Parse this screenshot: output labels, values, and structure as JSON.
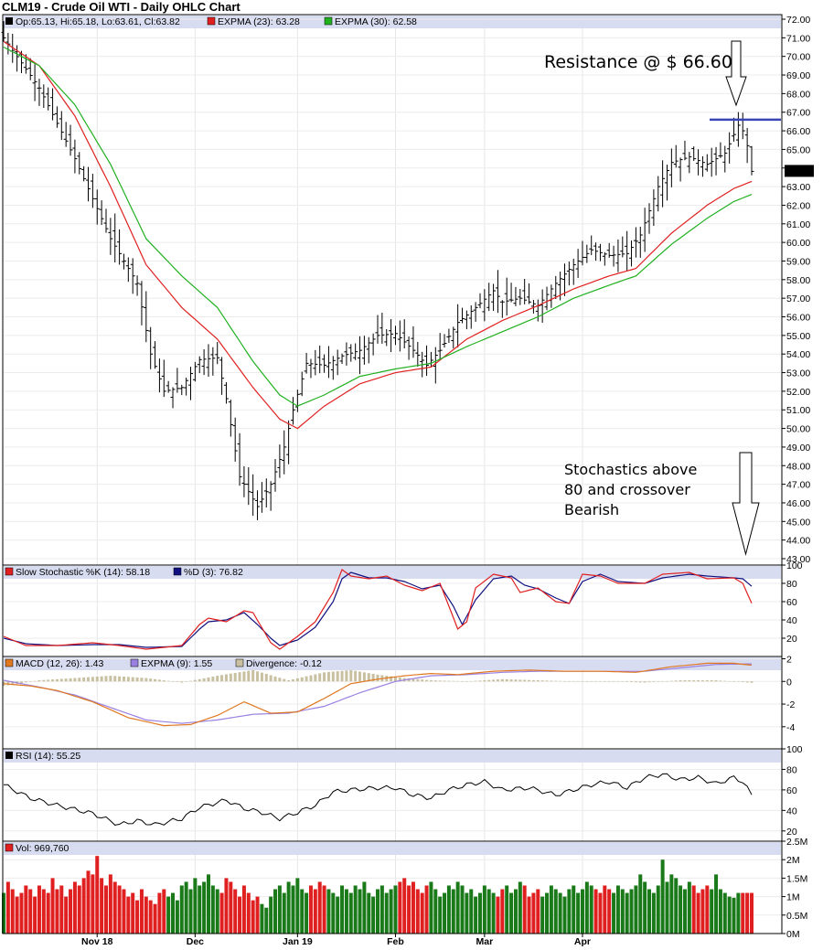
{
  "chart_data": {
    "type": "ohlc",
    "title": "CLM19 - Crude Oil WTI - Daily OHLC Chart",
    "x_tick_labels": [
      "Nov 18",
      "Dec",
      "Jan 19",
      "Feb",
      "Mar",
      "Apr"
    ],
    "price_panel": {
      "legend": {
        "ohlc": "Op:65.13, Hi:65.18, Lo:63.61, Cl:63.82",
        "ema23": "EXPMA (23): 63.28",
        "ema30": "EXPMA (30): 62.58"
      },
      "ylim": [
        43.0,
        72.0
      ],
      "y_ticks": [
        "72.00",
        "71.00",
        "70.00",
        "69.00",
        "68.00",
        "67.00",
        "66.00",
        "65.00",
        "64.00",
        "63.00",
        "62.00",
        "61.00",
        "60.00",
        "59.00",
        "58.00",
        "57.00",
        "56.00",
        "55.00",
        "54.00",
        "53.00",
        "52.00",
        "51.00",
        "50.00",
        "49.00",
        "48.00",
        "47.00",
        "46.00",
        "45.00",
        "44.00",
        "43.00"
      ],
      "last_close_label": "63.82",
      "close_waypoints": [
        [
          0,
          71.0
        ],
        [
          8,
          68.3
        ],
        [
          16,
          64.5
        ],
        [
          24,
          60.2
        ],
        [
          30,
          57.8
        ],
        [
          33,
          54.0
        ],
        [
          36,
          52.0
        ],
        [
          40,
          52.2
        ],
        [
          44,
          53.7
        ],
        [
          48,
          53.8
        ],
        [
          50,
          51.6
        ],
        [
          53,
          47.4
        ],
        [
          57,
          45.8
        ],
        [
          60,
          47.0
        ],
        [
          63,
          49.0
        ],
        [
          65,
          51.0
        ],
        [
          68,
          53.5
        ],
        [
          72,
          53.4
        ],
        [
          76,
          53.9
        ],
        [
          80,
          54.2
        ],
        [
          84,
          55.0
        ],
        [
          88,
          55.1
        ],
        [
          92,
          54.2
        ],
        [
          95,
          53.4
        ],
        [
          98,
          54.2
        ],
        [
          102,
          55.7
        ],
        [
          106,
          56.5
        ],
        [
          110,
          57.4
        ],
        [
          112,
          56.8
        ],
        [
          116,
          57.0
        ],
        [
          120,
          56.6
        ],
        [
          124,
          57.8
        ],
        [
          128,
          58.8
        ],
        [
          132,
          59.6
        ],
        [
          136,
          59.3
        ],
        [
          140,
          59.4
        ],
        [
          143,
          60.4
        ],
        [
          147,
          63.0
        ],
        [
          150,
          64.3
        ],
        [
          154,
          64.6
        ],
        [
          158,
          64.2
        ],
        [
          162,
          64.8
        ],
        [
          165,
          66.3
        ],
        [
          166,
          66.0
        ],
        [
          167,
          65.2
        ],
        [
          168,
          63.82
        ]
      ],
      "ema23_waypoints": [
        [
          0,
          70.8
        ],
        [
          8,
          69.5
        ],
        [
          16,
          66.8
        ],
        [
          24,
          63.0
        ],
        [
          32,
          58.8
        ],
        [
          40,
          56.5
        ],
        [
          48,
          54.8
        ],
        [
          56,
          52.2
        ],
        [
          62,
          50.5
        ],
        [
          66,
          50.0
        ],
        [
          72,
          51.2
        ],
        [
          80,
          52.4
        ],
        [
          88,
          53.0
        ],
        [
          96,
          53.3
        ],
        [
          104,
          54.8
        ],
        [
          112,
          55.8
        ],
        [
          120,
          56.6
        ],
        [
          128,
          57.5
        ],
        [
          136,
          58.2
        ],
        [
          142,
          58.6
        ],
        [
          150,
          60.5
        ],
        [
          158,
          62.0
        ],
        [
          164,
          62.9
        ],
        [
          168,
          63.28
        ]
      ],
      "ema30_waypoints": [
        [
          0,
          70.5
        ],
        [
          8,
          69.5
        ],
        [
          16,
          67.4
        ],
        [
          24,
          64.2
        ],
        [
          32,
          60.2
        ],
        [
          40,
          58.2
        ],
        [
          48,
          56.5
        ],
        [
          56,
          53.6
        ],
        [
          62,
          51.8
        ],
        [
          66,
          51.2
        ],
        [
          72,
          51.8
        ],
        [
          80,
          52.8
        ],
        [
          88,
          53.2
        ],
        [
          96,
          53.5
        ],
        [
          104,
          54.4
        ],
        [
          112,
          55.2
        ],
        [
          120,
          56.0
        ],
        [
          128,
          57.0
        ],
        [
          136,
          57.7
        ],
        [
          142,
          58.2
        ],
        [
          150,
          59.9
        ],
        [
          158,
          61.3
        ],
        [
          164,
          62.2
        ],
        [
          168,
          62.58
        ]
      ],
      "resistance": {
        "value": 66.6,
        "label": "Resistance @ $ 66.60"
      }
    },
    "stochastic_panel": {
      "legend": {
        "k": "Slow Stochastic %K (14): 58.18",
        "d": "%D (3): 76.82"
      },
      "ylim": [
        0,
        100
      ],
      "y_ticks": [
        "100",
        "80",
        "60",
        "40",
        "20"
      ],
      "k_waypoints": [
        [
          0,
          22
        ],
        [
          5,
          12
        ],
        [
          12,
          12
        ],
        [
          20,
          15
        ],
        [
          26,
          12
        ],
        [
          32,
          8
        ],
        [
          40,
          12
        ],
        [
          44,
          35
        ],
        [
          46,
          42
        ],
        [
          50,
          38
        ],
        [
          54,
          50
        ],
        [
          56,
          48
        ],
        [
          60,
          15
        ],
        [
          62,
          8
        ],
        [
          66,
          22
        ],
        [
          70,
          38
        ],
        [
          74,
          70
        ],
        [
          76,
          95
        ],
        [
          78,
          88
        ],
        [
          82,
          85
        ],
        [
          86,
          88
        ],
        [
          90,
          78
        ],
        [
          94,
          72
        ],
        [
          98,
          80
        ],
        [
          102,
          30
        ],
        [
          104,
          38
        ],
        [
          106,
          75
        ],
        [
          110,
          90
        ],
        [
          114,
          86
        ],
        [
          116,
          70
        ],
        [
          120,
          75
        ],
        [
          124,
          60
        ],
        [
          127,
          58
        ],
        [
          130,
          90
        ],
        [
          134,
          88
        ],
        [
          138,
          80
        ],
        [
          144,
          80
        ],
        [
          148,
          90
        ],
        [
          154,
          92
        ],
        [
          158,
          85
        ],
        [
          164,
          86
        ],
        [
          166,
          80
        ],
        [
          168,
          58.18
        ]
      ],
      "d_waypoints": [
        [
          0,
          20
        ],
        [
          5,
          14
        ],
        [
          12,
          12
        ],
        [
          20,
          13
        ],
        [
          26,
          13
        ],
        [
          32,
          10
        ],
        [
          40,
          11
        ],
        [
          44,
          30
        ],
        [
          46,
          38
        ],
        [
          50,
          40
        ],
        [
          54,
          48
        ],
        [
          57,
          35
        ],
        [
          60,
          20
        ],
        [
          62,
          12
        ],
        [
          66,
          18
        ],
        [
          70,
          32
        ],
        [
          74,
          60
        ],
        [
          76,
          85
        ],
        [
          78,
          92
        ],
        [
          82,
          86
        ],
        [
          86,
          86
        ],
        [
          90,
          82
        ],
        [
          94,
          74
        ],
        [
          98,
          78
        ],
        [
          101,
          55
        ],
        [
          103,
          35
        ],
        [
          106,
          62
        ],
        [
          110,
          85
        ],
        [
          114,
          88
        ],
        [
          117,
          78
        ],
        [
          120,
          74
        ],
        [
          124,
          64
        ],
        [
          127,
          58
        ],
        [
          130,
          82
        ],
        [
          134,
          90
        ],
        [
          138,
          82
        ],
        [
          144,
          80
        ],
        [
          148,
          86
        ],
        [
          154,
          90
        ],
        [
          158,
          88
        ],
        [
          164,
          86
        ],
        [
          166,
          85
        ],
        [
          168,
          76.82
        ]
      ]
    },
    "macd_panel": {
      "legend": {
        "macd": "MACD (12, 26): 1.43",
        "signal": "EXPMA (9): 1.55",
        "divergence": "Divergence: -0.12"
      },
      "ylim": [
        -5,
        2
      ],
      "y_ticks": [
        "2",
        "0",
        "-2",
        "-4"
      ],
      "macd_waypoints": [
        [
          0,
          -0.2
        ],
        [
          6,
          -0.4
        ],
        [
          12,
          -0.8
        ],
        [
          20,
          -1.8
        ],
        [
          28,
          -3.2
        ],
        [
          36,
          -3.9
        ],
        [
          42,
          -3.8
        ],
        [
          48,
          -3.0
        ],
        [
          54,
          -1.8
        ],
        [
          60,
          -2.8
        ],
        [
          66,
          -2.7
        ],
        [
          72,
          -1.5
        ],
        [
          78,
          -0.2
        ],
        [
          84,
          0.2
        ],
        [
          90,
          0.5
        ],
        [
          96,
          0.7
        ],
        [
          102,
          0.6
        ],
        [
          110,
          0.9
        ],
        [
          118,
          1.0
        ],
        [
          126,
          0.9
        ],
        [
          134,
          0.9
        ],
        [
          142,
          0.8
        ],
        [
          150,
          1.3
        ],
        [
          158,
          1.6
        ],
        [
          164,
          1.6
        ],
        [
          168,
          1.43
        ]
      ],
      "signal_waypoints": [
        [
          0,
          0.1
        ],
        [
          8,
          -0.5
        ],
        [
          16,
          -1.2
        ],
        [
          24,
          -2.3
        ],
        [
          32,
          -3.4
        ],
        [
          40,
          -3.7
        ],
        [
          48,
          -3.4
        ],
        [
          56,
          -2.9
        ],
        [
          64,
          -2.8
        ],
        [
          72,
          -2.2
        ],
        [
          80,
          -1.0
        ],
        [
          88,
          0.0
        ],
        [
          96,
          0.5
        ],
        [
          104,
          0.6
        ],
        [
          112,
          0.8
        ],
        [
          120,
          0.9
        ],
        [
          128,
          0.9
        ],
        [
          136,
          0.9
        ],
        [
          144,
          0.9
        ],
        [
          152,
          1.2
        ],
        [
          160,
          1.5
        ],
        [
          168,
          1.55
        ]
      ],
      "divergence_waypoints": [
        [
          0,
          -0.4
        ],
        [
          8,
          0.1
        ],
        [
          16,
          0.3
        ],
        [
          24,
          0.5
        ],
        [
          32,
          0.3
        ],
        [
          40,
          -0.1
        ],
        [
          48,
          0.5
        ],
        [
          56,
          1.0
        ],
        [
          64,
          0.1
        ],
        [
          72,
          0.8
        ],
        [
          78,
          1.0
        ],
        [
          84,
          0.6
        ],
        [
          90,
          0.3
        ],
        [
          96,
          0.1
        ],
        [
          104,
          0.0
        ],
        [
          112,
          0.2
        ],
        [
          120,
          0.1
        ],
        [
          128,
          0.0
        ],
        [
          136,
          0.0
        ],
        [
          144,
          -0.1
        ],
        [
          152,
          0.1
        ],
        [
          160,
          0.1
        ],
        [
          168,
          -0.12
        ]
      ]
    },
    "rsi_panel": {
      "legend": "RSI (14): 55.25",
      "ylim": [
        10,
        100
      ],
      "y_ticks": [
        "100",
        "80",
        "60",
        "40",
        "20"
      ],
      "waypoints": [
        [
          0,
          65
        ],
        [
          6,
          52
        ],
        [
          12,
          45
        ],
        [
          20,
          37
        ],
        [
          26,
          26
        ],
        [
          30,
          30
        ],
        [
          34,
          26
        ],
        [
          40,
          32
        ],
        [
          44,
          43
        ],
        [
          50,
          50
        ],
        [
          54,
          42
        ],
        [
          58,
          38
        ],
        [
          62,
          32
        ],
        [
          66,
          38
        ],
        [
          70,
          45
        ],
        [
          74,
          58
        ],
        [
          78,
          60
        ],
        [
          84,
          62
        ],
        [
          88,
          62
        ],
        [
          92,
          55
        ],
        [
          96,
          52
        ],
        [
          100,
          60
        ],
        [
          104,
          65
        ],
        [
          108,
          68
        ],
        [
          112,
          60
        ],
        [
          118,
          62
        ],
        [
          124,
          55
        ],
        [
          128,
          60
        ],
        [
          132,
          65
        ],
        [
          136,
          68
        ],
        [
          140,
          62
        ],
        [
          144,
          72
        ],
        [
          148,
          75
        ],
        [
          152,
          70
        ],
        [
          156,
          72
        ],
        [
          160,
          66
        ],
        [
          164,
          72
        ],
        [
          166,
          68
        ],
        [
          168,
          55.25
        ]
      ]
    },
    "volume_panel": {
      "legend": "Vol: 969,760",
      "ylim": [
        0,
        2500000
      ],
      "y_ticks": [
        "2.5M",
        "2M",
        "1.5M",
        "1M",
        "0.5M",
        "0M"
      ],
      "base_volumes": [
        1.1,
        1.4,
        1.2,
        1.0,
        1.1,
        1.3,
        1.2,
        1.0,
        1.3,
        1.2,
        1.1,
        1.5,
        1.2,
        1.3,
        1.0,
        1.2,
        1.4,
        1.3,
        1.5,
        1.7,
        1.6,
        2.1,
        1.5,
        1.3,
        1.6,
        1.4,
        1.3,
        1.2,
        1.0,
        1.1,
        0.9,
        1.2,
        1.0,
        0.9,
        0.8,
        1.1,
        1.2,
        1.0,
        1.1,
        0.9,
        1.3,
        1.4,
        1.2,
        1.5,
        1.3,
        1.4,
        1.6,
        1.3,
        1.2,
        1.1,
        1.5,
        1.4,
        1.2,
        1.0,
        1.3,
        1.1,
        0.9,
        1.0,
        0.8,
        0.7,
        1.0,
        1.2,
        1.3,
        1.1,
        1.4,
        1.3,
        1.5,
        1.2,
        1.1,
        1.3,
        1.2,
        1.4,
        1.3,
        1.2,
        1.1,
        1.0,
        1.3,
        1.2,
        1.1,
        1.3,
        1.2,
        1.4,
        1.1,
        1.0,
        1.2,
        1.3,
        1.1,
        1.2,
        1.3,
        1.4,
        1.5,
        1.3,
        1.4,
        1.2,
        1.1,
        1.3,
        1.4,
        1.2,
        1.0,
        1.1,
        1.3,
        1.2,
        1.4,
        1.3,
        1.1,
        1.2,
        1.0,
        1.1,
        1.3,
        1.2,
        1.1,
        1.0,
        1.2,
        1.3,
        1.1,
        1.2,
        1.4,
        1.3,
        1.0,
        1.1,
        1.2,
        1.0,
        1.1,
        1.3,
        1.2,
        1.1,
        1.0,
        1.2,
        1.3,
        1.1,
        1.2,
        1.4,
        1.3,
        1.2,
        1.1,
        1.3,
        1.2,
        1.1,
        1.3,
        1.2,
        1.1,
        1.2,
        1.3,
        1.6,
        1.4,
        1.2,
        1.1,
        1.3,
        2.0,
        1.4,
        1.6,
        1.5,
        1.3,
        1.2,
        1.4,
        1.3,
        1.1,
        1.2,
        1.3,
        1.2,
        1.6,
        1.2,
        1.1,
        1.0,
        0.97
      ]
    },
    "annotations": {
      "stochastics_note": [
        "Stochastics above",
        "80 and crossover",
        "Bearish"
      ]
    },
    "colors": {
      "price_bars": "#000000",
      "ema23": "#e02020",
      "ema30": "#20b020",
      "resistance_line": "#3a45b5",
      "stoch_k": "#e02020",
      "stoch_d": "#101080",
      "macd": "#e07820",
      "macd_signal": "#9a80e0",
      "divergence": "#c8c0a0",
      "rsi": "#000000",
      "vol_up": "#1a7a1a",
      "vol_down": "#e02020",
      "panel_header": "#d8dcf0"
    }
  }
}
